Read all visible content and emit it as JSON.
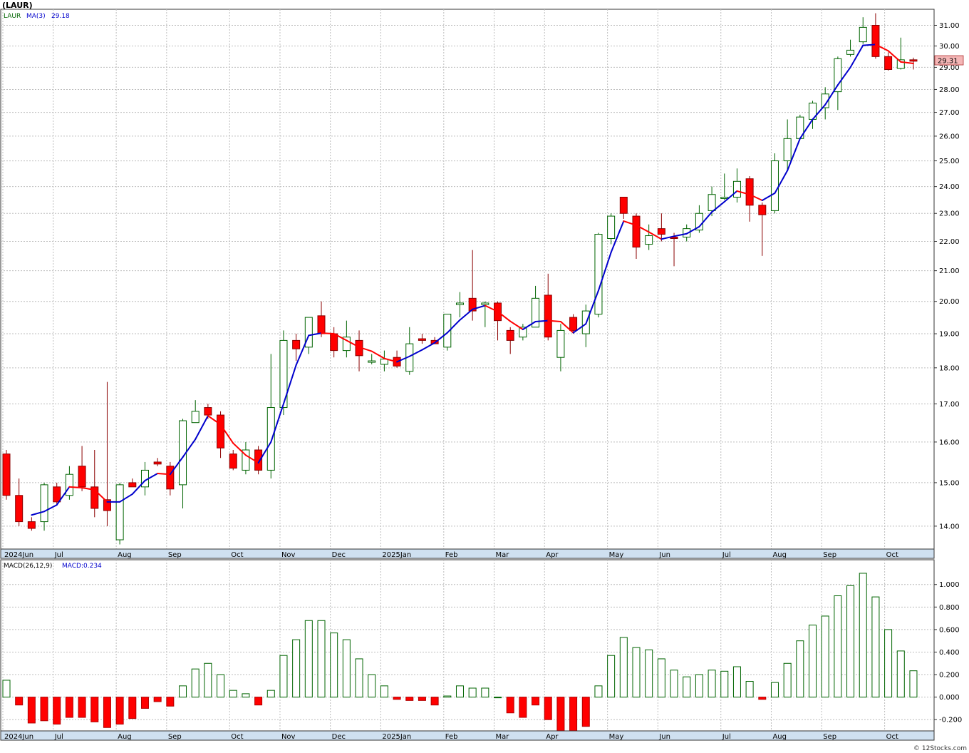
{
  "header": {
    "symbol": "(LAUR)",
    "legend_symbol": "LAUR",
    "ma_label": "MA(3)",
    "ma_value": "29.18",
    "last_price_label": "29.31",
    "credit": "© 12Stocks.com"
  },
  "colors": {
    "up_candle": "#006400",
    "down_candle": "#ff0000",
    "ma_up": "#0000cc",
    "ma_down": "#ff0000",
    "macd_pos": "#006400",
    "macd_neg": "#ff0000",
    "grid": "#bdbdbd",
    "axis_band": "#cfe0f0",
    "price_tag_bg": "#f4b6b6"
  },
  "x_axis_labels": [
    {
      "label": "2024Jun",
      "week": 0
    },
    {
      "label": "Jul",
      "week": 4
    },
    {
      "label": "Aug",
      "week": 9
    },
    {
      "label": "Sep",
      "week": 13
    },
    {
      "label": "Oct",
      "week": 18
    },
    {
      "label": "Nov",
      "week": 22
    },
    {
      "label": "Dec",
      "week": 26
    },
    {
      "label": "2025Jan",
      "week": 30
    },
    {
      "label": "Feb",
      "week": 35
    },
    {
      "label": "Mar",
      "week": 39
    },
    {
      "label": "Apr",
      "week": 43
    },
    {
      "label": "May",
      "week": 48
    },
    {
      "label": "Jun",
      "week": 52
    },
    {
      "label": "Jul",
      "week": 57
    },
    {
      "label": "Aug",
      "week": 61
    },
    {
      "label": "Sep",
      "week": 65
    },
    {
      "label": "Oct",
      "week": 70
    }
  ],
  "chart_data": [
    {
      "type": "candlestick",
      "title": "(LAUR)",
      "legend": [
        "LAUR",
        "MA(3) 29.18"
      ],
      "y_scale": "log",
      "ylim": [
        13.5,
        31.8
      ],
      "y_ticks": [
        "14.00",
        "15.00",
        "16.00",
        "17.00",
        "18.00",
        "19.00",
        "20.00",
        "21.00",
        "22.00",
        "23.00",
        "24.00",
        "25.00",
        "26.00",
        "27.00",
        "28.00",
        "29.00",
        "30.00",
        "31.00"
      ],
      "grid": true,
      "ohlc": [
        [
          15.7,
          15.8,
          14.6,
          14.7
        ],
        [
          14.7,
          15.1,
          14.0,
          14.1
        ],
        [
          14.1,
          14.2,
          13.9,
          13.95
        ],
        [
          14.1,
          15.0,
          13.9,
          14.95
        ],
        [
          14.9,
          15.0,
          14.5,
          14.55
        ],
        [
          14.7,
          15.4,
          14.6,
          15.2
        ],
        [
          15.4,
          15.9,
          14.8,
          14.9
        ],
        [
          14.9,
          15.8,
          14.2,
          14.4
        ],
        [
          14.6,
          17.6,
          14.0,
          14.35
        ],
        [
          13.7,
          15.0,
          13.6,
          14.95
        ],
        [
          15.0,
          15.1,
          14.9,
          14.9
        ],
        [
          14.9,
          15.5,
          14.7,
          15.3
        ],
        [
          15.5,
          15.6,
          15.4,
          15.45
        ],
        [
          15.4,
          15.5,
          14.7,
          14.85
        ],
        [
          14.95,
          16.6,
          14.4,
          16.55
        ],
        [
          16.5,
          17.1,
          16.5,
          16.8
        ],
        [
          16.9,
          17.0,
          16.6,
          16.7
        ],
        [
          16.7,
          16.8,
          15.6,
          15.85
        ],
        [
          15.7,
          15.8,
          15.3,
          15.35
        ],
        [
          15.3,
          16.0,
          15.2,
          15.8
        ],
        [
          15.8,
          15.9,
          15.2,
          15.3
        ],
        [
          15.3,
          18.4,
          15.1,
          16.9
        ],
        [
          16.9,
          19.1,
          16.7,
          18.8
        ],
        [
          18.8,
          19.0,
          18.2,
          18.55
        ],
        [
          18.6,
          19.5,
          18.4,
          19.5
        ],
        [
          19.55,
          20.0,
          18.9,
          19.0
        ],
        [
          19.0,
          19.2,
          18.3,
          18.5
        ],
        [
          18.5,
          19.4,
          18.3,
          18.9
        ],
        [
          18.8,
          19.1,
          17.9,
          18.35
        ],
        [
          18.2,
          18.4,
          18.1,
          18.2
        ],
        [
          18.1,
          18.5,
          17.9,
          18.25
        ],
        [
          18.3,
          18.5,
          18.0,
          18.05
        ],
        [
          17.9,
          19.2,
          17.8,
          18.7
        ],
        [
          18.85,
          19.0,
          18.7,
          18.8
        ],
        [
          18.8,
          18.9,
          18.7,
          18.7
        ],
        [
          18.6,
          19.6,
          18.5,
          19.6
        ],
        [
          19.9,
          20.3,
          19.5,
          19.95
        ],
        [
          20.1,
          21.7,
          19.4,
          19.7
        ],
        [
          19.9,
          20.0,
          19.2,
          19.95
        ],
        [
          19.95,
          20.0,
          18.8,
          19.4
        ],
        [
          19.1,
          19.2,
          18.4,
          18.8
        ],
        [
          18.9,
          19.3,
          18.8,
          19.2
        ],
        [
          19.2,
          20.5,
          19.2,
          20.1
        ],
        [
          20.2,
          20.9,
          18.8,
          18.9
        ],
        [
          18.3,
          19.3,
          17.9,
          19.1
        ],
        [
          19.5,
          19.6,
          19.0,
          19.1
        ],
        [
          19.0,
          19.9,
          18.6,
          19.7
        ],
        [
          19.6,
          22.3,
          19.5,
          22.25
        ],
        [
          22.1,
          23.0,
          21.9,
          22.9
        ],
        [
          23.6,
          23.6,
          22.8,
          23.0
        ],
        [
          22.9,
          23.0,
          21.4,
          21.8
        ],
        [
          21.9,
          22.6,
          21.7,
          22.2
        ],
        [
          22.45,
          23.0,
          22.0,
          22.25
        ],
        [
          22.15,
          22.3,
          21.15,
          22.1
        ],
        [
          22.15,
          22.6,
          22.0,
          22.45
        ],
        [
          22.4,
          23.3,
          22.3,
          23.0
        ],
        [
          23.1,
          24.0,
          22.9,
          23.7
        ],
        [
          23.6,
          24.5,
          23.5,
          23.6
        ],
        [
          23.6,
          24.7,
          23.4,
          24.2
        ],
        [
          24.3,
          24.4,
          22.7,
          23.3
        ],
        [
          23.3,
          23.4,
          21.5,
          22.95
        ],
        [
          23.1,
          25.3,
          23.0,
          25.0
        ],
        [
          25.0,
          26.7,
          24.6,
          25.9
        ],
        [
          25.9,
          26.9,
          25.9,
          26.8
        ],
        [
          26.7,
          27.5,
          26.3,
          27.4
        ],
        [
          27.2,
          28.1,
          26.7,
          27.8
        ],
        [
          27.9,
          29.5,
          27.1,
          29.4
        ],
        [
          29.6,
          30.3,
          29.5,
          29.8
        ],
        [
          30.2,
          31.4,
          30.1,
          30.9
        ],
        [
          31.0,
          31.6,
          29.4,
          29.5
        ],
        [
          29.5,
          29.7,
          28.85,
          28.9
        ],
        [
          28.95,
          30.4,
          28.9,
          29.35
        ],
        [
          29.35,
          29.45,
          28.9,
          29.31
        ]
      ],
      "ma3": [
        null,
        null,
        14.25,
        14.33,
        14.48,
        14.9,
        14.88,
        14.83,
        14.55,
        14.55,
        14.73,
        15.05,
        15.22,
        15.2,
        15.62,
        16.07,
        16.68,
        16.45,
        15.97,
        15.67,
        15.48,
        16.0,
        17.0,
        18.08,
        18.95,
        19.02,
        19.0,
        18.8,
        18.6,
        18.48,
        18.27,
        18.17,
        18.33,
        18.52,
        18.73,
        19.03,
        19.42,
        19.75,
        19.87,
        19.68,
        19.38,
        19.13,
        19.37,
        19.4,
        19.37,
        19.03,
        19.3,
        20.35,
        21.62,
        22.72,
        22.57,
        22.33,
        22.08,
        22.18,
        22.27,
        22.52,
        23.05,
        23.43,
        23.83,
        23.7,
        23.48,
        23.75,
        24.62,
        25.9,
        26.7,
        27.33,
        28.2,
        29.0,
        30.03,
        30.07,
        29.77,
        29.25,
        29.18
      ],
      "last_price": 29.31
    },
    {
      "type": "bar",
      "title": "MACD(26,12,9)",
      "legend": [
        "MACD(26,12,9)",
        "MACD:0.234"
      ],
      "ylim": [
        -0.3,
        1.22
      ],
      "y_ticks": [
        "-0.200",
        "0.000",
        "0.200",
        "0.400",
        "0.600",
        "0.800",
        "1.000"
      ],
      "grid": true,
      "values": [
        0.15,
        -0.07,
        -0.23,
        -0.21,
        -0.24,
        -0.18,
        -0.18,
        -0.22,
        -0.27,
        -0.24,
        -0.19,
        -0.1,
        -0.04,
        -0.08,
        0.1,
        0.25,
        0.3,
        0.2,
        0.06,
        0.03,
        -0.07,
        0.06,
        0.37,
        0.51,
        0.68,
        0.68,
        0.57,
        0.51,
        0.34,
        0.2,
        0.1,
        -0.02,
        -0.03,
        -0.03,
        -0.07,
        0.01,
        0.1,
        0.08,
        0.08,
        0.0,
        -0.14,
        -0.18,
        -0.07,
        -0.2,
        -0.3,
        -0.32,
        -0.26,
        0.1,
        0.37,
        0.53,
        0.44,
        0.42,
        0.34,
        0.24,
        0.18,
        0.2,
        0.24,
        0.23,
        0.27,
        0.14,
        -0.02,
        0.13,
        0.3,
        0.5,
        0.64,
        0.72,
        0.9,
        0.99,
        1.1,
        0.89,
        0.6,
        0.41,
        0.234
      ],
      "last_value": 0.234
    }
  ]
}
